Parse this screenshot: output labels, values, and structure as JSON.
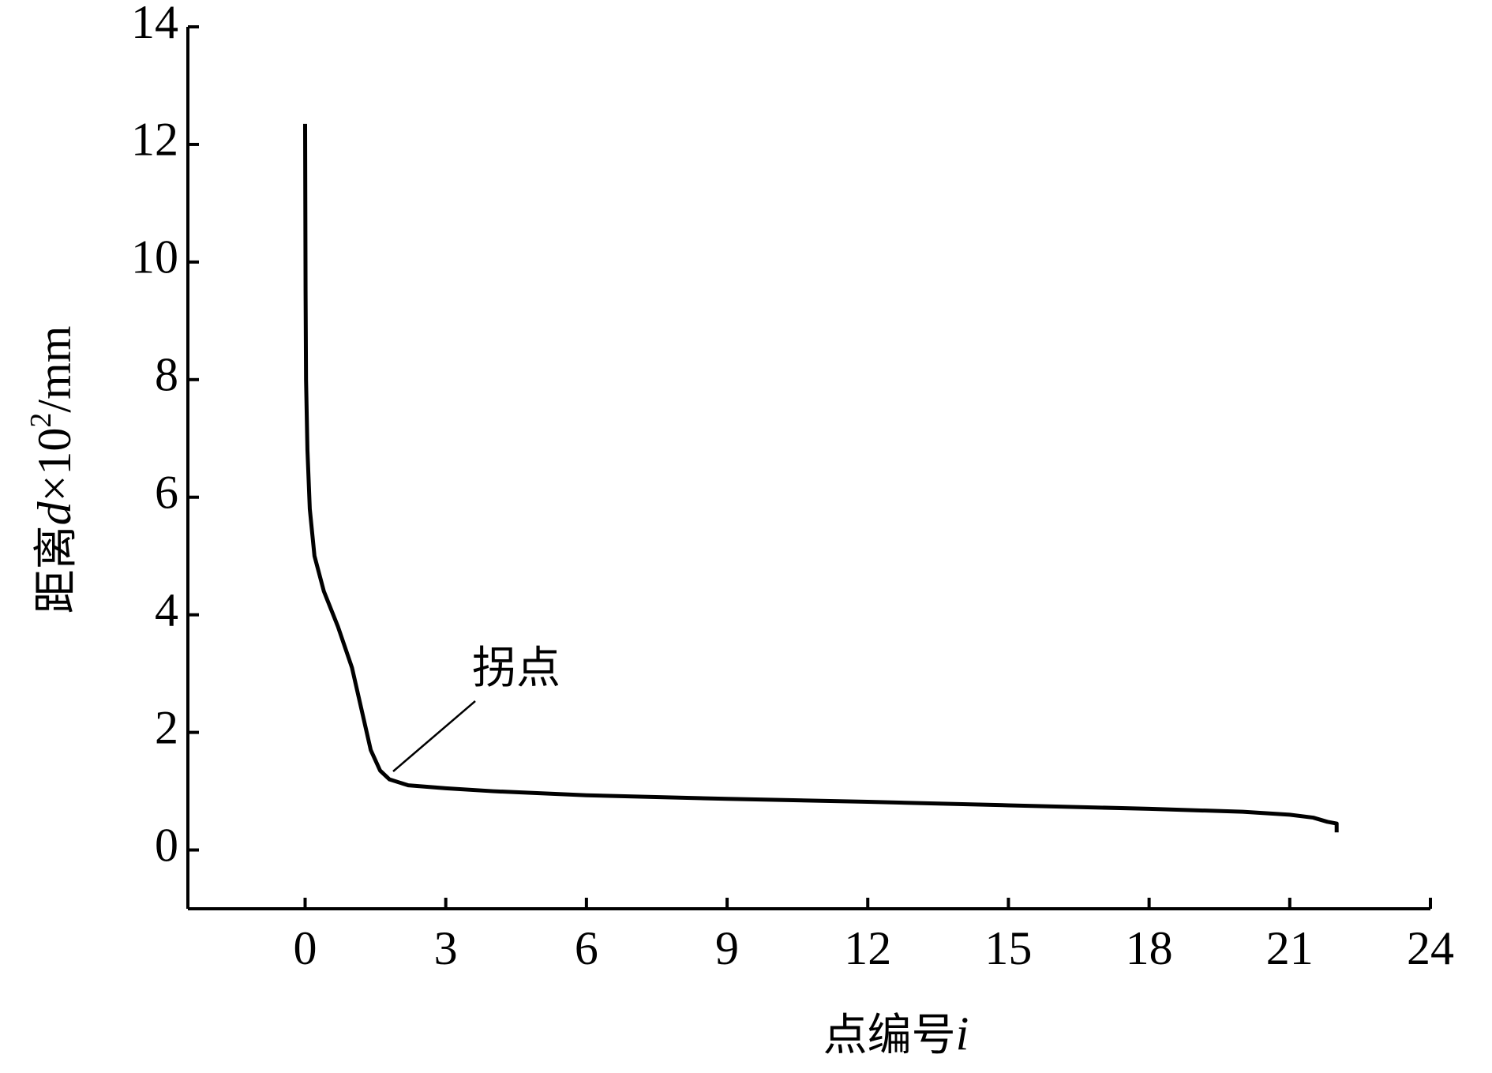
{
  "chart_data": {
    "type": "line",
    "xlabel": [
      "点编号",
      "i"
    ],
    "ylabel": [
      "距离",
      "d",
      "×10",
      "2",
      "/mm"
    ],
    "annotation": "拐点",
    "x": [
      0,
      0.01,
      0.02,
      0.05,
      0.1,
      0.2,
      0.4,
      0.7,
      1.0,
      1.2,
      1.4,
      1.6,
      1.8,
      2.2,
      3,
      4,
      6,
      9,
      12,
      15,
      18,
      20,
      21,
      21.5,
      21.8,
      22,
      22
    ],
    "values": [
      12.35,
      9.5,
      8,
      6.8,
      5.8,
      5.0,
      4.4,
      3.8,
      3.1,
      2.4,
      1.7,
      1.35,
      1.2,
      1.1,
      1.05,
      1.0,
      0.93,
      0.87,
      0.82,
      0.76,
      0.7,
      0.65,
      0.6,
      0.55,
      0.48,
      0.45,
      0.3
    ],
    "color": "#000000",
    "xlim": [
      -2.5,
      24
    ],
    "xticks": [
      0,
      3,
      6,
      9,
      12,
      15,
      18,
      21,
      24
    ],
    "ylim": [
      -1,
      14
    ],
    "yticks": [
      0,
      2,
      4,
      6,
      8,
      10,
      12,
      14
    ],
    "grid": false
  }
}
